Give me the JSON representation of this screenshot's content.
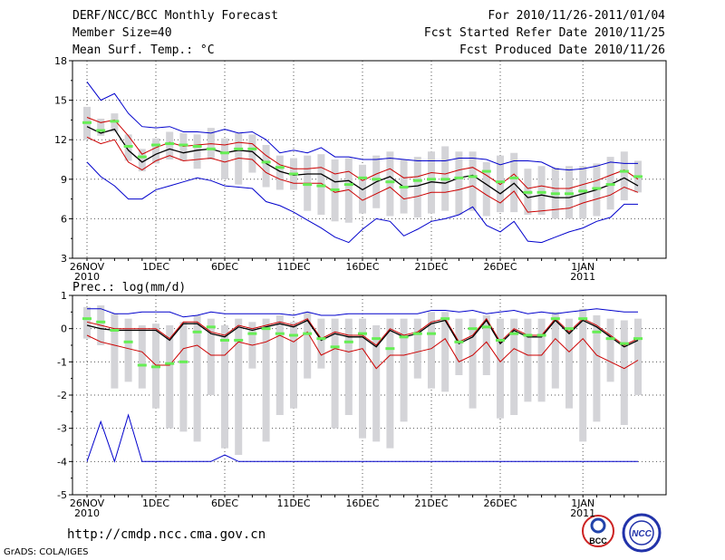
{
  "header": {
    "title": "DERF/NCC/BCC Monthly Forecast",
    "member_size": "Member Size=40",
    "variable": "Mean Surf. Temp.: °C",
    "period": "For 2010/11/26-2011/01/04",
    "started": "Fcst Started Refer Date 2010/11/25",
    "produced": "Fcst Produced Date 2010/11/26"
  },
  "footer": {
    "url": "http://cmdp.ncc.cma.gov.cn",
    "credit": "GrADS: COLA/IGES",
    "logo_left": "BCC",
    "logo_right": "NCC"
  },
  "colors": {
    "envelope": "#0000cc",
    "spread": "#cc0000",
    "mean": "#000000",
    "box": "#d4d4d8",
    "marker": "#66ee55",
    "grid": "#555555"
  },
  "chart_data": [
    {
      "type": "line",
      "title": "Mean Surf. Temp.: °C",
      "ylim": [
        3,
        18
      ],
      "yticks": [
        3,
        6,
        9,
        12,
        15,
        18
      ],
      "xlim": [
        0,
        40
      ],
      "xticks": [
        {
          "day": 0,
          "label": "26NOV",
          "sub": "2010"
        },
        {
          "day": 5,
          "label": "1DEC"
        },
        {
          "day": 10,
          "label": "6DEC"
        },
        {
          "day": 15,
          "label": "11DEC"
        },
        {
          "day": 20,
          "label": "16DEC"
        },
        {
          "day": 25,
          "label": "21DEC"
        },
        {
          "day": 30,
          "label": "26DEC"
        },
        {
          "day": 36,
          "label": "1JAN",
          "sub": "2011"
        }
      ],
      "series": [
        {
          "name": "max",
          "values": [
            16.4,
            15.0,
            15.5,
            14.0,
            13.0,
            12.9,
            13.0,
            12.6,
            12.6,
            12.5,
            12.8,
            12.5,
            12.6,
            12.0,
            11.0,
            11.2,
            11.0,
            11.4,
            10.7,
            10.7,
            10.5,
            10.5,
            10.6,
            10.5,
            10.4,
            10.4,
            10.4,
            10.6,
            10.6,
            10.5,
            10.1,
            10.4,
            10.4,
            10.3,
            9.8,
            9.7,
            9.8,
            10.0,
            10.3,
            10.2,
            10.2
          ]
        },
        {
          "name": "p75",
          "values": [
            13.7,
            13.3,
            13.5,
            12.3,
            10.9,
            11.4,
            11.8,
            11.5,
            11.6,
            11.7,
            11.6,
            11.8,
            11.7,
            10.8,
            10.1,
            9.8,
            9.8,
            9.9,
            9.4,
            9.6,
            8.9,
            9.4,
            9.8,
            9.1,
            9.2,
            9.5,
            9.4,
            9.7,
            9.9,
            9.3,
            8.6,
            9.4,
            8.3,
            8.5,
            8.3,
            8.3,
            8.6,
            8.9,
            9.3,
            9.7,
            9.0
          ]
        },
        {
          "name": "mean",
          "values": [
            13.0,
            12.5,
            12.8,
            11.2,
            10.3,
            10.9,
            11.3,
            11.0,
            11.2,
            11.3,
            11.0,
            11.2,
            11.1,
            10.2,
            9.6,
            9.3,
            9.4,
            9.4,
            8.8,
            8.9,
            8.2,
            8.8,
            9.2,
            8.4,
            8.5,
            8.8,
            8.7,
            9.1,
            9.3,
            8.6,
            7.9,
            8.7,
            7.6,
            7.8,
            7.6,
            7.6,
            7.9,
            8.2,
            8.6,
            9.1,
            8.5
          ]
        },
        {
          "name": "p25",
          "values": [
            12.2,
            11.7,
            12.0,
            10.3,
            9.7,
            10.4,
            10.8,
            10.4,
            10.5,
            10.6,
            10.3,
            10.6,
            10.5,
            9.5,
            9.0,
            8.7,
            8.7,
            8.7,
            8.0,
            8.2,
            7.4,
            7.9,
            8.4,
            7.5,
            7.7,
            8.0,
            8.0,
            8.2,
            8.5,
            7.8,
            7.2,
            8.1,
            6.5,
            6.6,
            6.7,
            6.8,
            7.2,
            7.5,
            7.8,
            8.4,
            8.0
          ]
        },
        {
          "name": "min",
          "values": [
            10.3,
            9.2,
            8.5,
            7.5,
            7.5,
            8.2,
            8.5,
            8.8,
            9.1,
            8.9,
            8.5,
            8.4,
            8.3,
            7.3,
            7.0,
            6.5,
            5.9,
            5.3,
            4.6,
            4.2,
            5.2,
            6.0,
            5.8,
            4.7,
            5.2,
            5.8,
            6.0,
            6.3,
            6.9,
            5.5,
            5.0,
            5.8,
            4.3,
            4.2,
            4.6,
            5.0,
            5.3,
            5.8,
            6.1,
            7.1,
            7.1
          ]
        }
      ],
      "boxes": {
        "low": [
          12.0,
          12.3,
          12.6,
          10.4,
          9.6,
          10.2,
          10.5,
          10.4,
          9.8,
          10.5,
          9.0,
          8.6,
          9.5,
          8.4,
          8.2,
          8.2,
          6.6,
          6.3,
          5.8,
          5.7,
          6.4,
          6.8,
          6.2,
          6.4,
          6.1,
          6.4,
          6.6,
          6.3,
          6.6,
          6.2,
          6.5,
          6.5,
          6.3,
          6.3,
          6.0,
          6.0,
          6.0,
          6.2,
          6.7,
          7.4,
          8.0
        ],
        "high": [
          14.5,
          13.6,
          14.0,
          12.4,
          11.3,
          12.1,
          12.6,
          12.5,
          12.4,
          12.9,
          12.1,
          12.5,
          12.4,
          11.6,
          10.8,
          10.6,
          10.8,
          10.9,
          10.5,
          10.6,
          10.1,
          10.8,
          11.1,
          10.5,
          10.7,
          11.1,
          11.5,
          11.1,
          11.1,
          10.3,
          10.8,
          11.0,
          9.8,
          10.0,
          9.9,
          10.0,
          10.0,
          10.2,
          10.7,
          11.1,
          10.4
        ]
      },
      "markers": [
        13.3,
        12.7,
        13.4,
        11.5,
        10.7,
        11.6,
        11.7,
        11.6,
        11.5,
        11.3,
        11.0,
        11.3,
        11.3,
        10.3,
        9.9,
        9.4,
        8.6,
        8.5,
        8.2,
        8.6,
        9.1,
        9.0,
        8.8,
        8.4,
        8.9,
        9.0,
        9.0,
        9.1,
        9.2,
        9.6,
        8.8,
        9.1,
        8.0,
        8.0,
        7.9,
        7.9,
        8.1,
        8.3,
        8.6,
        9.6,
        9.2
      ]
    },
    {
      "type": "line",
      "title": "Prec.: log(mm/d)",
      "ylim": [
        -5,
        1
      ],
      "yticks": [
        -5,
        -4,
        -3,
        -2,
        -1,
        0,
        1
      ],
      "xlim": [
        0,
        40
      ],
      "xticks": [
        {
          "day": 0,
          "label": "26NOV",
          "sub": "2010"
        },
        {
          "day": 5,
          "label": "1DEC"
        },
        {
          "day": 10,
          "label": "6DEC"
        },
        {
          "day": 15,
          "label": "11DEC"
        },
        {
          "day": 20,
          "label": "16DEC"
        },
        {
          "day": 25,
          "label": "21DEC"
        },
        {
          "day": 30,
          "label": "26DEC"
        },
        {
          "day": 36,
          "label": "1JAN",
          "sub": "2011"
        }
      ],
      "series": [
        {
          "name": "max",
          "values": [
            0.6,
            0.6,
            0.45,
            0.45,
            0.5,
            0.5,
            0.5,
            0.35,
            0.4,
            0.5,
            0.45,
            0.45,
            0.45,
            0.45,
            0.45,
            0.4,
            0.5,
            0.4,
            0.4,
            0.45,
            0.45,
            0.45,
            0.45,
            0.45,
            0.45,
            0.55,
            0.55,
            0.5,
            0.55,
            0.45,
            0.5,
            0.55,
            0.45,
            0.5,
            0.45,
            0.5,
            0.55,
            0.6,
            0.55,
            0.5,
            0.5
          ]
        },
        {
          "name": "p75",
          "values": [
            0.2,
            0.1,
            0.0,
            0.0,
            0.0,
            0.0,
            -0.3,
            0.2,
            0.2,
            -0.1,
            -0.2,
            0.1,
            0.0,
            0.1,
            0.2,
            0.1,
            0.3,
            -0.3,
            -0.1,
            -0.2,
            -0.2,
            -0.5,
            0.0,
            -0.2,
            -0.1,
            0.2,
            0.3,
            -0.4,
            -0.2,
            0.3,
            -0.4,
            0.0,
            -0.2,
            -0.2,
            0.3,
            -0.1,
            0.3,
            0.1,
            -0.2,
            -0.5,
            -0.3
          ]
        },
        {
          "name": "mean",
          "values": [
            0.1,
            0.0,
            -0.05,
            -0.05,
            -0.05,
            -0.05,
            -0.35,
            0.15,
            0.15,
            -0.15,
            -0.25,
            0.05,
            -0.05,
            0.05,
            0.15,
            0.05,
            0.25,
            -0.35,
            -0.15,
            -0.25,
            -0.25,
            -0.55,
            -0.05,
            -0.25,
            -0.15,
            0.15,
            0.25,
            -0.45,
            -0.25,
            0.25,
            -0.45,
            -0.05,
            -0.25,
            -0.25,
            0.25,
            -0.15,
            0.25,
            0.05,
            -0.25,
            -0.55,
            -0.35
          ]
        },
        {
          "name": "p25",
          "values": [
            -0.2,
            -0.4,
            -0.5,
            -0.6,
            -0.7,
            -1.1,
            -1.1,
            -0.6,
            -0.5,
            -0.8,
            -0.8,
            -0.4,
            -0.5,
            -0.4,
            -0.2,
            -0.4,
            -0.1,
            -0.8,
            -0.6,
            -0.7,
            -0.6,
            -1.2,
            -0.8,
            -0.8,
            -0.7,
            -0.6,
            -0.3,
            -1.0,
            -0.8,
            -0.4,
            -1.0,
            -0.6,
            -0.8,
            -0.8,
            -0.3,
            -0.7,
            -0.3,
            -0.8,
            -1.0,
            -1.2,
            -0.95
          ]
        },
        {
          "name": "min",
          "values": [
            -4.0,
            -2.8,
            -4.0,
            -2.6,
            -4.0,
            -4.0,
            -4.0,
            -4.0,
            -4.0,
            -4.0,
            -3.8,
            -4.0,
            -4.0,
            -4.0,
            -4.0,
            -4.0,
            -4.0,
            -4.0,
            -4.0,
            -4.0,
            -4.0,
            -4.0,
            -4.0,
            -4.0,
            -4.0,
            -4.0,
            -4.0,
            -4.0,
            -4.0,
            -4.0,
            -4.0,
            -4.0,
            -4.0,
            -4.0,
            -4.0,
            -4.0,
            -4.0,
            -4.0,
            -4.0,
            -4.0,
            -4.0
          ]
        }
      ],
      "boxes": {
        "low": [
          -0.3,
          -0.5,
          -1.8,
          -1.6,
          -1.8,
          -2.4,
          -3.0,
          -3.1,
          -3.4,
          -2.0,
          -3.6,
          -3.8,
          -1.2,
          -3.4,
          -2.6,
          -2.4,
          -1.5,
          -1.2,
          -3.0,
          -2.6,
          -3.3,
          -3.4,
          -3.6,
          -2.8,
          -1.5,
          -1.8,
          -1.9,
          -1.4,
          -2.4,
          -1.4,
          -2.7,
          -2.6,
          -2.2,
          -2.2,
          -1.8,
          -2.4,
          -3.4,
          -2.8,
          -1.6,
          -2.9,
          -2.0
        ],
        "high": [
          0.65,
          0.7,
          0.45,
          0.3,
          0.1,
          0.15,
          0.1,
          0.2,
          0.4,
          0.3,
          0.1,
          0.3,
          0.2,
          0.3,
          0.4,
          0.2,
          0.5,
          0.3,
          0.3,
          0.3,
          0.3,
          0.1,
          0.3,
          0.3,
          0.3,
          0.5,
          0.5,
          0.3,
          0.3,
          0.4,
          0.3,
          0.3,
          0.3,
          0.3,
          0.5,
          0.3,
          0.6,
          0.4,
          0.3,
          0.25,
          0.3
        ]
      },
      "markers": [
        0.3,
        0.2,
        -0.05,
        -0.4,
        -1.1,
        -1.15,
        -1.05,
        -1.0,
        -0.1,
        0.05,
        -0.35,
        -0.35,
        -0.15,
        0.0,
        -0.15,
        -0.2,
        -0.15,
        -0.3,
        -0.55,
        -0.4,
        -0.15,
        -0.3,
        -0.6,
        -0.25,
        -0.15,
        -0.15,
        0.3,
        -0.4,
        0.0,
        0.05,
        -0.35,
        -0.15,
        -0.2,
        -0.2,
        0.3,
        0.0,
        0.3,
        -0.1,
        -0.3,
        -0.45,
        -0.3
      ]
    }
  ]
}
